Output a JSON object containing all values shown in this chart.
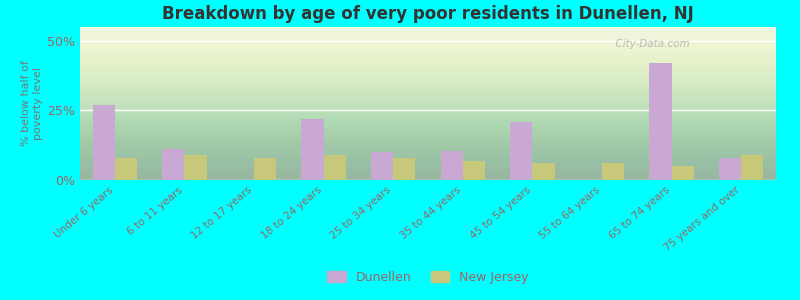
{
  "title": "Breakdown by age of very poor residents in Dunellen, NJ",
  "ylabel": "% below half of\npoverty level",
  "categories": [
    "Under 6 years",
    "6 to 11 years",
    "12 to 17 years",
    "18 to 24 years",
    "25 to 34 years",
    "35 to 44 years",
    "45 to 54 years",
    "55 to 64 years",
    "65 to 74 years",
    "75 years and over"
  ],
  "dunellen_values": [
    27.0,
    11.0,
    0.0,
    22.0,
    10.0,
    10.5,
    21.0,
    0.0,
    42.0,
    8.0
  ],
  "nj_values": [
    8.0,
    9.0,
    8.0,
    9.0,
    8.0,
    7.0,
    6.0,
    6.0,
    5.0,
    9.0
  ],
  "dunellen_color": "#c9a8d4",
  "nj_color": "#c8c87a",
  "background_color": "#00ffff",
  "plot_bg_color": "#eaf2e0",
  "title_color": "#333333",
  "axis_label_color": "#777777",
  "tick_label_color": "#996666",
  "ylim": [
    0,
    55
  ],
  "yticks": [
    0,
    25,
    50
  ],
  "ytick_labels": [
    "0%",
    "25%",
    "50%"
  ],
  "bar_width": 0.32,
  "legend_dunellen": "Dunellen",
  "legend_nj": "New Jersey"
}
